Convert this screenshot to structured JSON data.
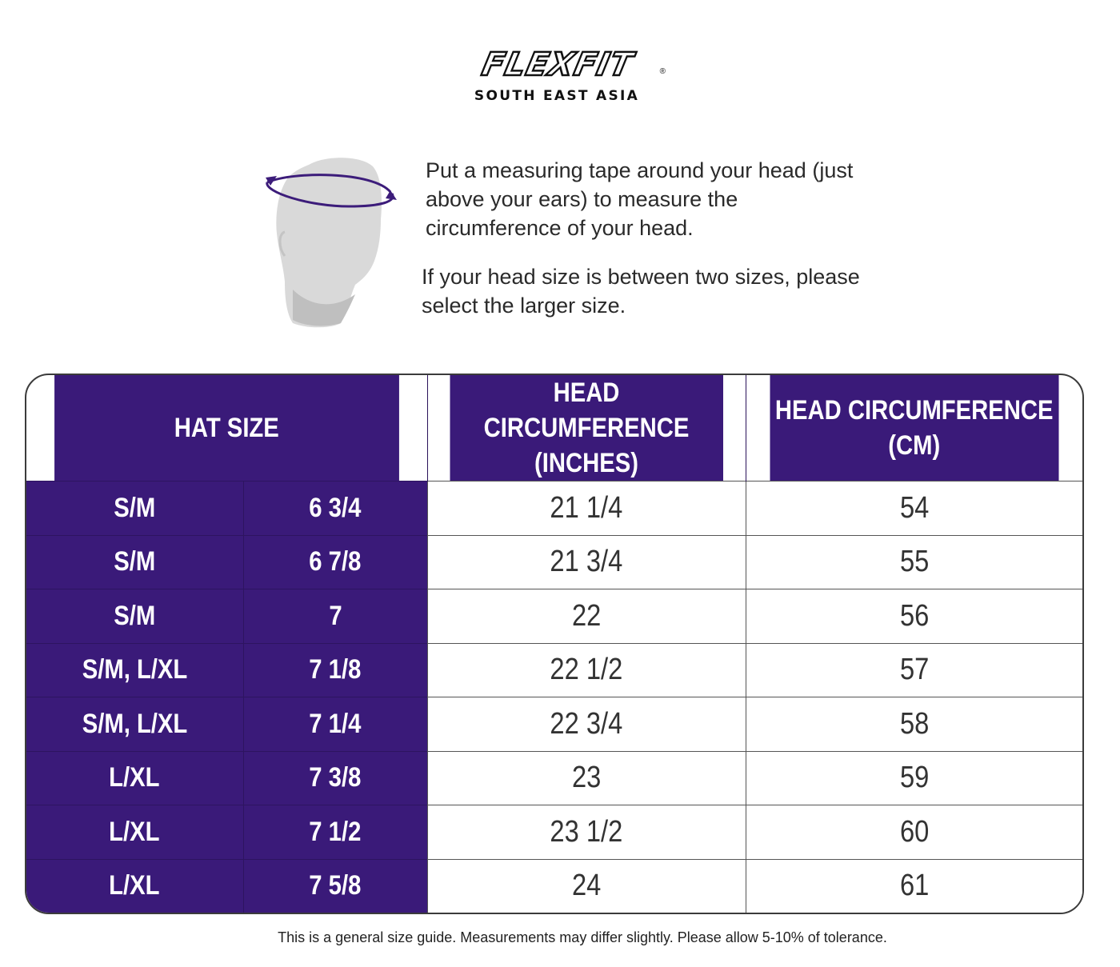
{
  "brand": {
    "logo_text": "FLEXFIT",
    "registered_mark": "®",
    "region": "SOUTH EAST ASIA"
  },
  "instructions": {
    "paragraph1": "Put a measuring tape around your head (just above your ears) to measure the circumference of your head.",
    "paragraph2": "If your head size is between two sizes, please select the larger size."
  },
  "table": {
    "headers": {
      "hat_size": "HAT SIZE",
      "inches_line1": "HEAD CIRCUMFERENCE",
      "inches_line2": "(INCHES)",
      "cm_line1": "HEAD CIRCUMFERENCE",
      "cm_line2": "(CM)"
    },
    "rows": [
      {
        "size": "S/M",
        "fitted": "6 3/4",
        "inches": "21 1/4",
        "cm": "54"
      },
      {
        "size": "S/M",
        "fitted": "6 7/8",
        "inches": "21 3/4",
        "cm": "55"
      },
      {
        "size": "S/M",
        "fitted": "7",
        "inches": "22",
        "cm": "56"
      },
      {
        "size": "S/M, L/XL",
        "fitted": "7 1/8",
        "inches": "22 1/2",
        "cm": "57"
      },
      {
        "size": "S/M, L/XL",
        "fitted": "7 1/4",
        "inches": "22 3/4",
        "cm": "58"
      },
      {
        "size": "L/XL",
        "fitted": "7 3/8",
        "inches": "23",
        "cm": "59"
      },
      {
        "size": "L/XL",
        "fitted": "7 1/2",
        "inches": "23 1/2",
        "cm": "60"
      },
      {
        "size": "L/XL",
        "fitted": "7 5/8",
        "inches": "24",
        "cm": "61"
      }
    ]
  },
  "disclaimer": "This is a general size guide. Measurements may differ slightly. Please allow 5-10% of tolerance.",
  "colors": {
    "header_purple": "#3a1a79",
    "tape_purple": "#3c1c7a",
    "head_gray": "#d9d9d9"
  }
}
